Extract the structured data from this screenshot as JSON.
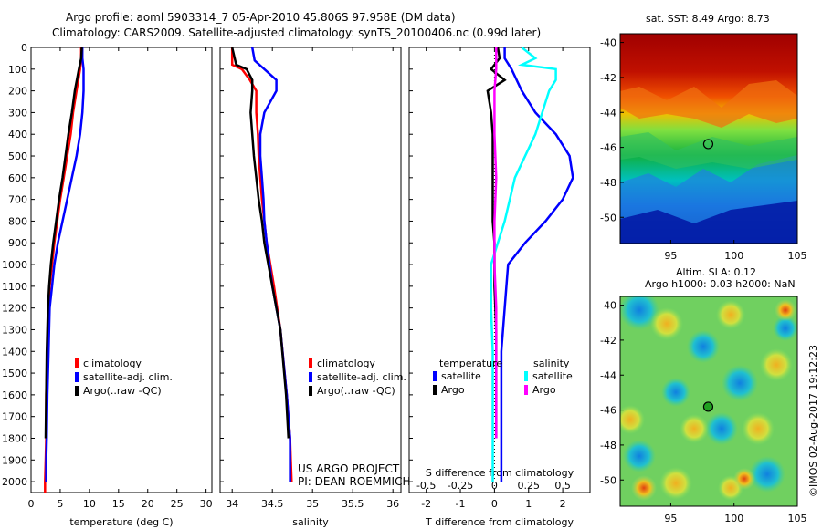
{
  "header": {
    "title_line1": "Argo profile: aoml 5903314_7 05-Apr-2010 45.806S 97.958E (DM data)",
    "title_line2": "Climatology: CARS2009. Satellite-adjusted climatology: synTS_20100406.nc (0.99d later)"
  },
  "legend_temp": {
    "items": [
      {
        "label": "climatology",
        "color": "#ff0000"
      },
      {
        "label": "satellite-adj. clim.",
        "color": "#0000ff"
      },
      {
        "label": "Argo(..raw -QC)",
        "color": "#000000"
      }
    ]
  },
  "legend_sal": {
    "items": [
      {
        "label": "climatology",
        "color": "#ff0000"
      },
      {
        "label": "satellite-adj. clim.",
        "color": "#0000ff"
      },
      {
        "label": "Argo(..raw -QC)",
        "color": "#000000"
      }
    ]
  },
  "legend_diff": {
    "temp_header": "temperature",
    "sal_header": "salinity",
    "items": [
      {
        "label": "satellite",
        "color": "#0000ff"
      },
      {
        "label": "Argo",
        "color": "#000000"
      },
      {
        "label": "satellite",
        "color": "#00ffff"
      },
      {
        "label": "Argo",
        "color": "#ff00ff"
      }
    ]
  },
  "project_note": {
    "line1": "US ARGO PROJECT",
    "line2": "PI: DEAN ROEMMICH"
  },
  "sst_map": {
    "title": "sat. SST: 8.49 Argo: 8.73"
  },
  "sla_map": {
    "title1": "Altim. SLA: 0.12",
    "title2": "Argo h1000: 0.03 h2000: NaN"
  },
  "watermark": "©IMOS 02-Aug-2017 19:12:23",
  "chart_data": [
    {
      "type": "line",
      "xlabel": "temperature (deg C)",
      "ylabel": "",
      "xlim": [
        0,
        31
      ],
      "ylim": [
        2050,
        0
      ],
      "xticks": [
        0,
        5,
        10,
        15,
        20,
        25,
        30
      ],
      "yticks": [
        0,
        100,
        200,
        300,
        400,
        500,
        600,
        700,
        800,
        900,
        1000,
        1100,
        1200,
        1300,
        1400,
        1500,
        1600,
        1700,
        1800,
        1900,
        2000
      ],
      "series": [
        {
          "name": "climatology",
          "color": "#ff0000",
          "x": [
            8.6,
            8.6,
            8.4,
            7.8,
            7.2,
            6.8,
            6.2,
            5.6,
            5.0,
            4.5,
            4.0,
            3.6,
            3.2,
            3.0,
            2.8,
            2.6,
            2.6,
            2.5,
            2.4,
            2.4
          ],
          "y": [
            0,
            50,
            100,
            200,
            300,
            400,
            500,
            600,
            700,
            800,
            900,
            1000,
            1100,
            1200,
            1400,
            1600,
            1800,
            1900,
            2000,
            2050
          ]
        },
        {
          "name": "satellite-adj. clim.",
          "color": "#0000ff",
          "x": [
            8.8,
            8.8,
            9.0,
            9.0,
            8.8,
            8.4,
            7.8,
            7.0,
            6.2,
            5.4,
            4.6,
            4.0,
            3.6,
            3.2,
            3.0,
            2.8,
            2.7,
            2.6,
            2.6
          ],
          "y": [
            0,
            50,
            100,
            200,
            300,
            400,
            500,
            600,
            700,
            800,
            900,
            1000,
            1100,
            1200,
            1400,
            1600,
            1800,
            1900,
            2000
          ]
        },
        {
          "name": "Argo(..raw -QC)",
          "color": "#000000",
          "x": [
            8.7,
            8.6,
            8.2,
            7.5,
            7.0,
            6.4,
            5.9,
            5.4,
            4.8,
            4.3,
            3.8,
            3.4,
            3.1,
            2.9,
            2.7,
            2.6,
            2.5
          ],
          "y": [
            0,
            50,
            100,
            200,
            300,
            400,
            500,
            600,
            700,
            800,
            900,
            1000,
            1100,
            1200,
            1400,
            1600,
            1800
          ]
        }
      ]
    },
    {
      "type": "line",
      "xlabel": "salinity",
      "ylabel": "",
      "xlim": [
        33.85,
        36.1
      ],
      "ylim": [
        2050,
        0
      ],
      "xticks": [
        34,
        34.5,
        35,
        35.5,
        36
      ],
      "series": [
        {
          "name": "climatology",
          "color": "#ff0000",
          "x": [
            34.0,
            34.0,
            34.12,
            34.22,
            34.3,
            34.3,
            34.32,
            34.33,
            34.35,
            34.37,
            34.4,
            34.43,
            34.52,
            34.6,
            34.68,
            34.72,
            34.73,
            34.74
          ],
          "y": [
            0,
            80,
            100,
            150,
            200,
            300,
            400,
            500,
            600,
            700,
            800,
            900,
            1100,
            1300,
            1600,
            1800,
            1900,
            2000
          ]
        },
        {
          "name": "satellite-adj. clim.",
          "color": "#0000ff",
          "x": [
            34.25,
            34.28,
            34.4,
            34.55,
            34.55,
            34.4,
            34.35,
            34.35,
            34.37,
            34.39,
            34.4,
            34.43,
            34.5,
            34.6,
            34.68,
            34.72,
            34.72,
            34.72
          ],
          "y": [
            0,
            60,
            100,
            150,
            200,
            300,
            400,
            500,
            600,
            700,
            800,
            900,
            1100,
            1300,
            1600,
            1800,
            1900,
            2000
          ]
        },
        {
          "name": "Argo(..raw -QC)",
          "color": "#000000",
          "x": [
            34.0,
            34.05,
            34.18,
            34.25,
            34.25,
            34.23,
            34.25,
            34.27,
            34.3,
            34.33,
            34.37,
            34.4,
            34.5,
            34.6,
            34.67,
            34.7
          ],
          "y": [
            0,
            80,
            100,
            150,
            200,
            300,
            400,
            500,
            600,
            700,
            800,
            900,
            1100,
            1300,
            1600,
            1800
          ]
        }
      ]
    },
    {
      "type": "line",
      "xlabel": "T difference from climatology",
      "xlabel_top": "S difference from climatology",
      "xlim": [
        -2.5,
        2.8
      ],
      "ylim": [
        2050,
        0
      ],
      "xticks": [
        -2,
        -1,
        0,
        1,
        2
      ],
      "xticks_top": [
        "-0.5",
        "-0.25",
        "0",
        "0.25",
        "0.5"
      ],
      "series": [
        {
          "name": "temperature satellite",
          "color": "#0000ff",
          "x": [
            0.3,
            0.3,
            0.5,
            0.8,
            1.2,
            1.8,
            2.2,
            2.3,
            2.0,
            1.5,
            0.9,
            0.4,
            0.3,
            0.2,
            0.2,
            0.2,
            0.2
          ],
          "y": [
            0,
            50,
            100,
            200,
            300,
            400,
            500,
            600,
            700,
            800,
            900,
            1000,
            1200,
            1400,
            1600,
            1800,
            2000
          ]
        },
        {
          "name": "temperature Argo",
          "color": "#000000",
          "x": [
            0.1,
            0.15,
            -0.1,
            0.3,
            -0.2,
            -0.1,
            -0.05,
            -0.05,
            -0.05,
            -0.05,
            -0.05,
            0.0,
            0.0,
            0.05,
            0.05,
            0.05
          ],
          "y": [
            0,
            50,
            100,
            150,
            200,
            300,
            400,
            500,
            600,
            700,
            800,
            900,
            1100,
            1300,
            1500,
            1800
          ]
        },
        {
          "name": "salinity satellite",
          "color": "#00ffff",
          "x": [
            0.8,
            1.2,
            0.8,
            1.8,
            1.8,
            1.6,
            1.2,
            0.6,
            0.3,
            0.1,
            -0.1,
            -0.1,
            -0.05,
            -0.05,
            -0.05,
            -0.05
          ],
          "y": [
            0,
            50,
            80,
            100,
            150,
            200,
            400,
            600,
            800,
            900,
            1000,
            1200,
            1400,
            1600,
            1800,
            2000
          ]
        },
        {
          "name": "salinity Argo",
          "color": "#ff00ff",
          "x": [
            0.05,
            0.05,
            0.0,
            0.0,
            0.0,
            0.05,
            0.0,
            0.0,
            0.05,
            0.05,
            0.05,
            0.05
          ],
          "y": [
            0,
            100,
            200,
            300,
            400,
            600,
            800,
            1000,
            1200,
            1400,
            1600,
            1800
          ]
        }
      ]
    },
    {
      "type": "heatmap",
      "title": "sat. SST: 8.49 Argo: 8.73",
      "xlim": [
        91,
        105
      ],
      "ylim": [
        -51.5,
        -39.5
      ],
      "xticks": [
        95,
        100,
        105
      ],
      "yticks": [
        -40,
        -42,
        -44,
        -46,
        -48,
        -50
      ],
      "marker": {
        "lon": 97.96,
        "lat": -45.81
      }
    },
    {
      "type": "heatmap",
      "title": "Altim. SLA: 0.12",
      "xlim": [
        91,
        105
      ],
      "ylim": [
        -51.5,
        -39.5
      ],
      "xticks": [
        95,
        100,
        105
      ],
      "yticks": [
        -40,
        -42,
        -44,
        -46,
        -48,
        -50
      ],
      "marker": {
        "lon": 97.96,
        "lat": -45.81
      }
    }
  ]
}
